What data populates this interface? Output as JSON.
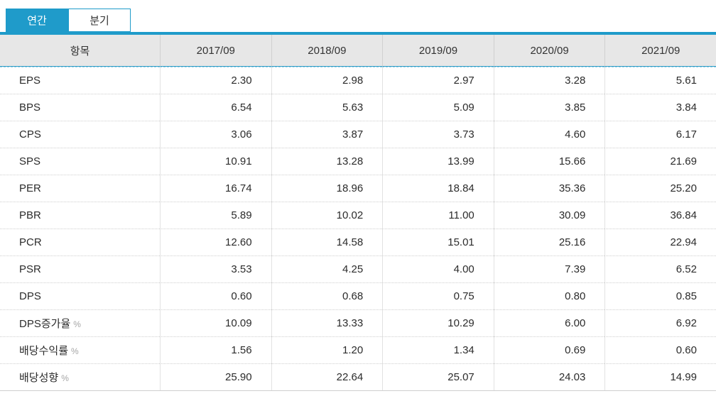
{
  "tabs": [
    {
      "label": "연간",
      "active": true
    },
    {
      "label": "분기",
      "active": false
    }
  ],
  "table": {
    "item_header": "항목",
    "columns": [
      "2017/09",
      "2018/09",
      "2019/09",
      "2020/09",
      "2021/09"
    ],
    "rows": [
      {
        "label": "EPS",
        "suffix": "",
        "values": [
          "2.30",
          "2.98",
          "2.97",
          "3.28",
          "5.61"
        ]
      },
      {
        "label": "BPS",
        "suffix": "",
        "values": [
          "6.54",
          "5.63",
          "5.09",
          "3.85",
          "3.84"
        ]
      },
      {
        "label": "CPS",
        "suffix": "",
        "values": [
          "3.06",
          "3.87",
          "3.73",
          "4.60",
          "6.17"
        ]
      },
      {
        "label": "SPS",
        "suffix": "",
        "values": [
          "10.91",
          "13.28",
          "13.99",
          "15.66",
          "21.69"
        ]
      },
      {
        "label": "PER",
        "suffix": "",
        "values": [
          "16.74",
          "18.96",
          "18.84",
          "35.36",
          "25.20"
        ]
      },
      {
        "label": "PBR",
        "suffix": "",
        "values": [
          "5.89",
          "10.02",
          "11.00",
          "30.09",
          "36.84"
        ]
      },
      {
        "label": "PCR",
        "suffix": "",
        "values": [
          "12.60",
          "14.58",
          "15.01",
          "25.16",
          "22.94"
        ]
      },
      {
        "label": "PSR",
        "suffix": "",
        "values": [
          "3.53",
          "4.25",
          "4.00",
          "7.39",
          "6.52"
        ]
      },
      {
        "label": "DPS",
        "suffix": "",
        "values": [
          "0.60",
          "0.68",
          "0.75",
          "0.80",
          "0.85"
        ]
      },
      {
        "label": "DPS증가율",
        "suffix": "%",
        "values": [
          "10.09",
          "13.33",
          "10.29",
          "6.00",
          "6.92"
        ]
      },
      {
        "label": "배당수익률",
        "suffix": "%",
        "values": [
          "1.56",
          "1.20",
          "1.34",
          "0.69",
          "0.60"
        ]
      },
      {
        "label": "배당성향",
        "suffix": "%",
        "values": [
          "25.90",
          "22.64",
          "25.07",
          "24.03",
          "14.99"
        ]
      }
    ]
  },
  "colors": {
    "accent_blue": "#1F9BCA",
    "header_background": "#E7E7E7",
    "header_underline_solid": "#2F9DC7",
    "header_underline_dashed": "#9ED2E6",
    "row_divider": "#CFCFCF",
    "column_divider": "#E2E2E2",
    "body_text": "#2B2B2B",
    "suffix_text": "#A5A5A5"
  }
}
